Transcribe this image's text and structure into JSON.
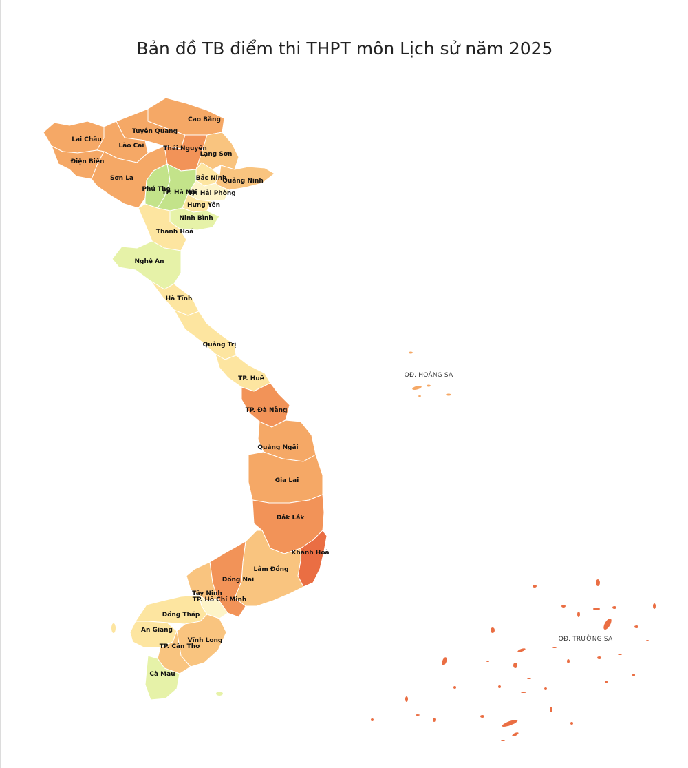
{
  "title": "Bản đồ TB điểm thi THPT môn Lịch sử năm 2025",
  "colors": {
    "deep": "#ea6e43",
    "strong": "#f29358",
    "orange": "#f5a866",
    "light_orange": "#f9c47f",
    "pale": "#fde5a0",
    "cream": "#fdf4c8",
    "yellow_green": "#e6f2a8",
    "green": "#c3e38a",
    "border": "#ffffff"
  },
  "provinces": [
    {
      "name": "Cao Bằng",
      "color": "orange"
    },
    {
      "name": "Tuyên Quang",
      "color": "orange"
    },
    {
      "name": "Lai Châu",
      "color": "orange"
    },
    {
      "name": "Lào Cai",
      "color": "orange"
    },
    {
      "name": "Thái Nguyên",
      "color": "strong"
    },
    {
      "name": "Lạng Sơn",
      "color": "light_orange"
    },
    {
      "name": "Điện Biên",
      "color": "orange"
    },
    {
      "name": "Sơn La",
      "color": "orange"
    },
    {
      "name": "Bắc Ninh",
      "color": "pale"
    },
    {
      "name": "Quảng Ninh",
      "color": "light_orange"
    },
    {
      "name": "Phú Thọ",
      "color": "green"
    },
    {
      "name": "TP. Hà Nội",
      "color": "green"
    },
    {
      "name": "TP. Hải Phòng",
      "color": "cream"
    },
    {
      "name": "Hưng Yên",
      "color": "pale"
    },
    {
      "name": "Ninh Bình",
      "color": "yellow_green"
    },
    {
      "name": "Thanh Hoá",
      "color": "pale"
    },
    {
      "name": "Nghệ An",
      "color": "yellow_green"
    },
    {
      "name": "Hà Tĩnh",
      "color": "pale"
    },
    {
      "name": "Quảng Trị",
      "color": "pale"
    },
    {
      "name": "TP. Huế",
      "color": "pale"
    },
    {
      "name": "TP. Đà Nẵng",
      "color": "strong"
    },
    {
      "name": "Quảng Ngãi",
      "color": "orange"
    },
    {
      "name": "Gia Lai",
      "color": "orange"
    },
    {
      "name": "Đắk Lắk",
      "color": "strong"
    },
    {
      "name": "Khánh Hoà",
      "color": "deep"
    },
    {
      "name": "Lâm Đồng",
      "color": "light_orange"
    },
    {
      "name": "Đồng Nai",
      "color": "strong"
    },
    {
      "name": "Tây Ninh",
      "color": "light_orange"
    },
    {
      "name": "TP. Hồ Chí Minh",
      "color": "cream"
    },
    {
      "name": "Đồng Tháp",
      "color": "pale"
    },
    {
      "name": "An Giang",
      "color": "pale"
    },
    {
      "name": "Vĩnh Long",
      "color": "light_orange"
    },
    {
      "name": "TP. Cần Thơ",
      "color": "light_orange"
    },
    {
      "name": "Cà Mau",
      "color": "yellow_green"
    }
  ],
  "islands": {
    "hoang_sa": {
      "label": "QĐ. HOÀNG SA",
      "color": "orange"
    },
    "truong_sa": {
      "label": "QĐ. TRƯỜNG SA",
      "color": "deep"
    }
  }
}
